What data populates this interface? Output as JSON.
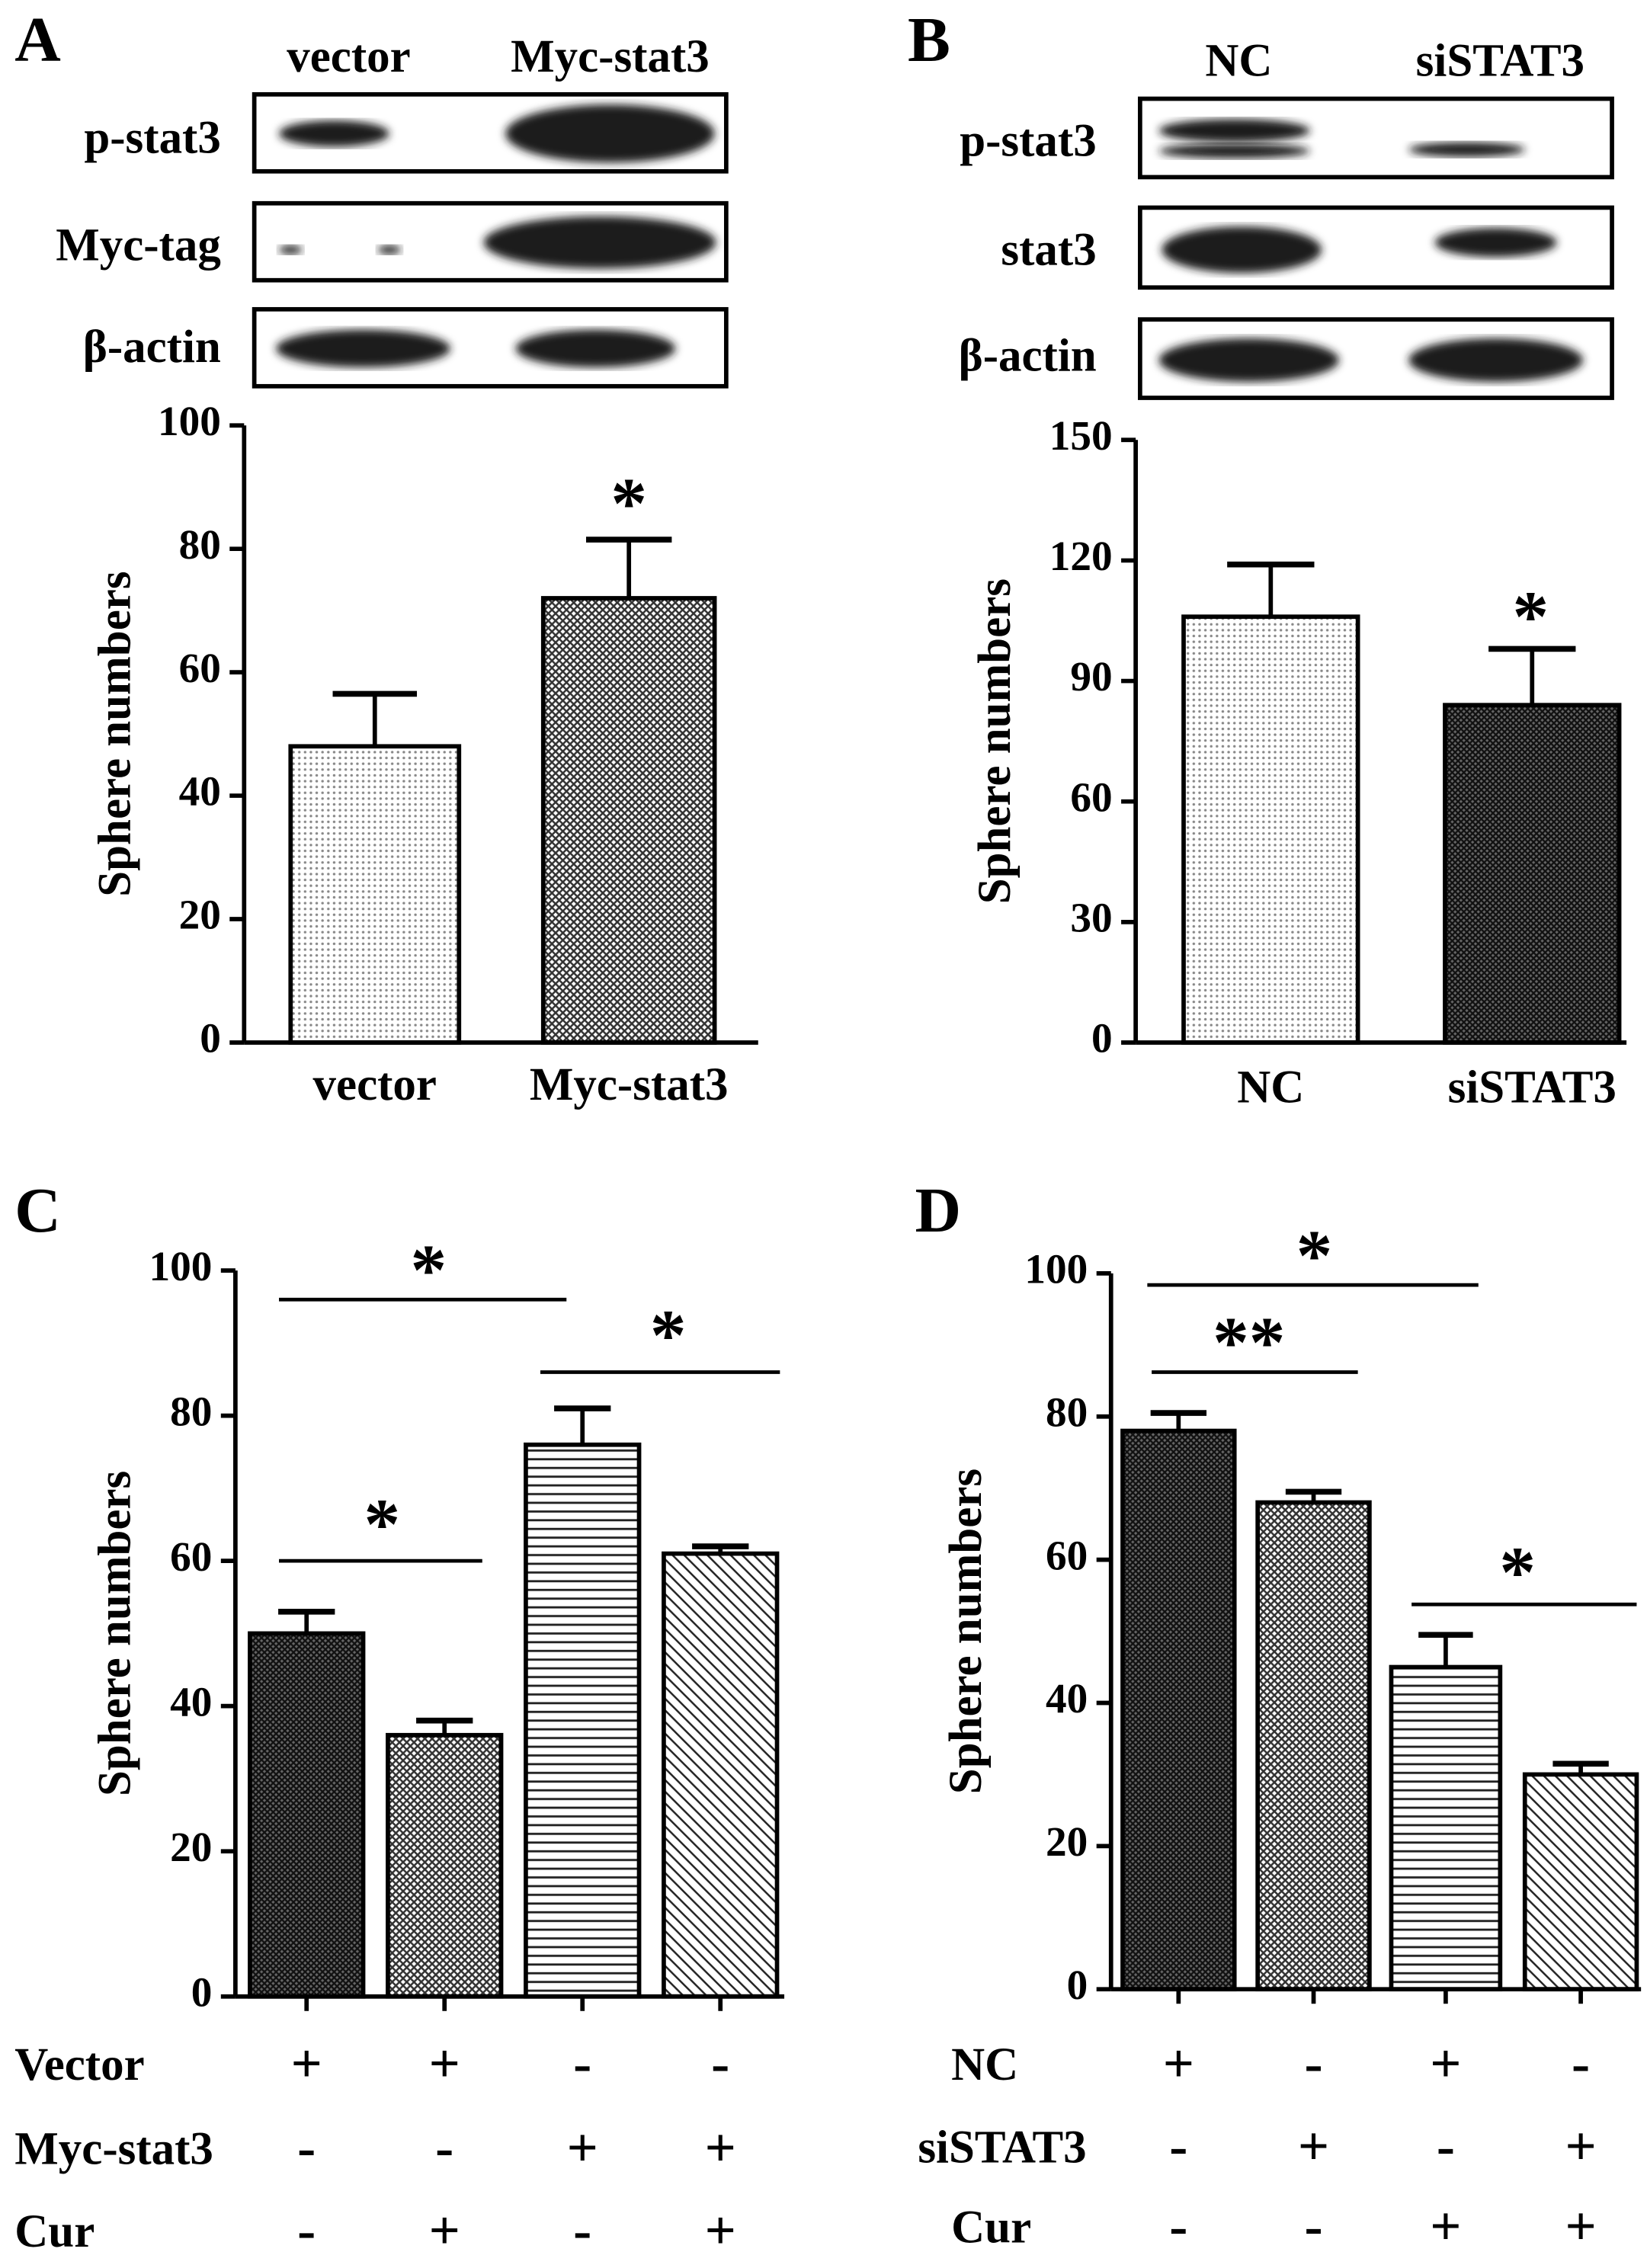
{
  "chart_data": [
    {
      "type": "bar",
      "panel": "A",
      "blot": {
        "lanes": [
          "vector",
          "Myc-stat3"
        ],
        "rows": [
          "p-stat3",
          "Myc-tag",
          "β-actin"
        ]
      },
      "ylabel": "Sphere numbers",
      "categories": [
        "vector",
        "Myc-stat3"
      ],
      "values": [
        48,
        72
      ],
      "errors": [
        8.5,
        9.5
      ],
      "ylim": [
        0,
        100
      ],
      "yticks": [
        0,
        20,
        40,
        60,
        80,
        100
      ],
      "significance": [
        "*"
      ]
    },
    {
      "type": "bar",
      "panel": "B",
      "blot": {
        "lanes": [
          "NC",
          "siSTAT3"
        ],
        "rows": [
          "p-stat3",
          "stat3",
          "β-actin"
        ]
      },
      "ylabel": "Sphere numbers",
      "categories": [
        "NC",
        "siSTAT3"
      ],
      "values": [
        106,
        84
      ],
      "errors": [
        13,
        14
      ],
      "ylim": [
        0,
        150
      ],
      "yticks": [
        0,
        30,
        60,
        90,
        120,
        150
      ],
      "significance": [
        "*"
      ]
    },
    {
      "type": "bar",
      "panel": "C",
      "ylabel": "Sphere numbers",
      "categories": [
        null,
        null,
        null,
        null
      ],
      "values": [
        50,
        36,
        76,
        61
      ],
      "errors": [
        3,
        2,
        5,
        1
      ],
      "ylim": [
        0,
        100
      ],
      "yticks": [
        0,
        20,
        40,
        60,
        80,
        100
      ],
      "conditions": [
        {
          "name": "Vector",
          "signs": [
            "+",
            "+",
            "-",
            "-"
          ]
        },
        {
          "name": "Myc-stat3",
          "signs": [
            "-",
            "-",
            "+",
            "+"
          ]
        },
        {
          "name": "Cur",
          "signs": [
            "-",
            "+",
            "-",
            "+"
          ]
        }
      ],
      "significance": [
        "*",
        "*",
        "*"
      ]
    },
    {
      "type": "bar",
      "panel": "D",
      "ylabel": "Sphere numbers",
      "categories": [
        null,
        null,
        null,
        null
      ],
      "values": [
        78,
        68,
        45,
        30
      ],
      "errors": [
        2.5,
        1.5,
        4.5,
        1.5
      ],
      "ylim": [
        0,
        100
      ],
      "yticks": [
        0,
        20,
        40,
        60,
        80,
        100
      ],
      "conditions": [
        {
          "name": "NC",
          "signs": [
            "+",
            "-",
            "+",
            "-"
          ]
        },
        {
          "name": "siSTAT3",
          "signs": [
            "-",
            "+",
            "-",
            "+"
          ]
        },
        {
          "name": "Cur",
          "signs": [
            "-",
            "-",
            "+",
            "+"
          ]
        }
      ],
      "significance": [
        "*",
        "**",
        "*"
      ]
    }
  ]
}
